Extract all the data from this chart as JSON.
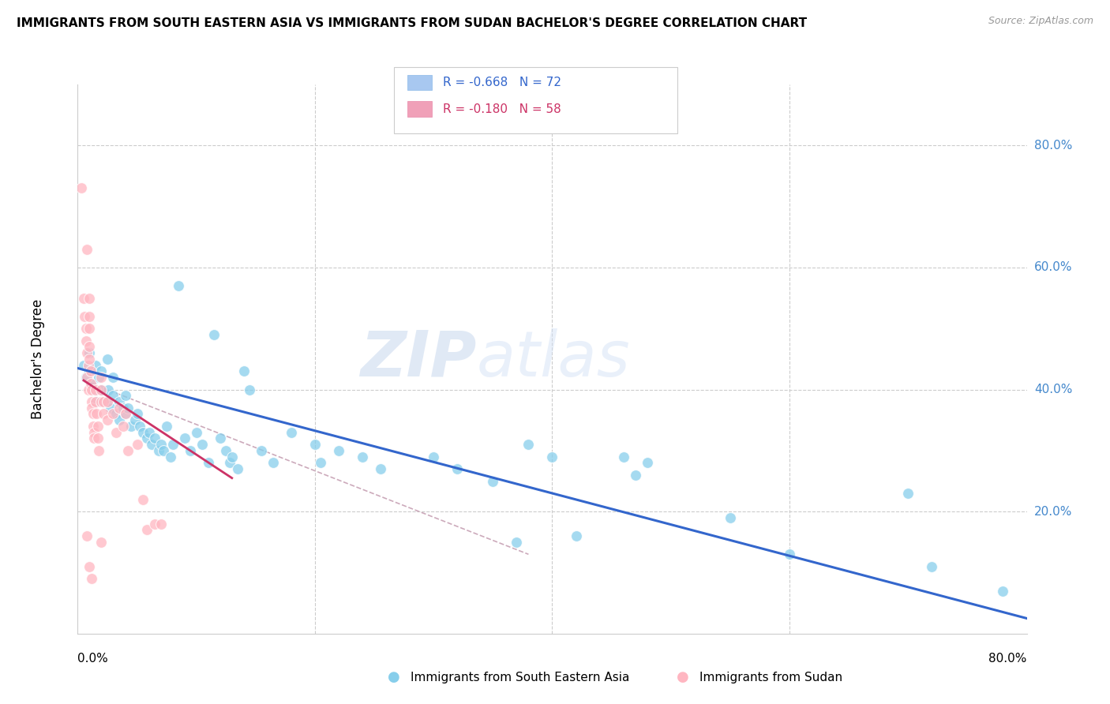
{
  "title": "IMMIGRANTS FROM SOUTH EASTERN ASIA VS IMMIGRANTS FROM SUDAN BACHELOR'S DEGREE CORRELATION CHART",
  "source": "Source: ZipAtlas.com",
  "ylabel": "Bachelor's Degree",
  "right_yticks": [
    "80.0%",
    "60.0%",
    "40.0%",
    "20.0%"
  ],
  "right_ytick_vals": [
    0.8,
    0.6,
    0.4,
    0.2
  ],
  "legend_blue_color": "#a8c8f0",
  "legend_pink_color": "#f0a0b8",
  "scatter_blue_color": "#87CEEB",
  "scatter_pink_color": "#FFB6C1",
  "trend_blue_color": "#3366CC",
  "trend_pink_color": "#CC3366",
  "trend_pink_dash_color": "#ccaabb",
  "watermark_zip": "ZIP",
  "watermark_atlas": "atlas",
  "background_color": "#ffffff",
  "xlim": [
    0.0,
    0.8
  ],
  "ylim": [
    0.0,
    0.9
  ],
  "blue_scatter": [
    [
      0.005,
      0.44
    ],
    [
      0.007,
      0.42
    ],
    [
      0.01,
      0.46
    ],
    [
      0.01,
      0.43
    ],
    [
      0.012,
      0.41
    ],
    [
      0.014,
      0.4
    ],
    [
      0.015,
      0.44
    ],
    [
      0.016,
      0.38
    ],
    [
      0.018,
      0.42
    ],
    [
      0.02,
      0.4
    ],
    [
      0.02,
      0.43
    ],
    [
      0.022,
      0.38
    ],
    [
      0.025,
      0.45
    ],
    [
      0.025,
      0.38
    ],
    [
      0.026,
      0.4
    ],
    [
      0.028,
      0.37
    ],
    [
      0.03,
      0.42
    ],
    [
      0.03,
      0.39
    ],
    [
      0.032,
      0.36
    ],
    [
      0.035,
      0.38
    ],
    [
      0.035,
      0.35
    ],
    [
      0.038,
      0.37
    ],
    [
      0.04,
      0.36
    ],
    [
      0.04,
      0.39
    ],
    [
      0.042,
      0.37
    ],
    [
      0.045,
      0.34
    ],
    [
      0.048,
      0.35
    ],
    [
      0.05,
      0.36
    ],
    [
      0.052,
      0.34
    ],
    [
      0.055,
      0.33
    ],
    [
      0.058,
      0.32
    ],
    [
      0.06,
      0.33
    ],
    [
      0.062,
      0.31
    ],
    [
      0.065,
      0.32
    ],
    [
      0.068,
      0.3
    ],
    [
      0.07,
      0.31
    ],
    [
      0.072,
      0.3
    ],
    [
      0.075,
      0.34
    ],
    [
      0.078,
      0.29
    ],
    [
      0.08,
      0.31
    ],
    [
      0.085,
      0.57
    ],
    [
      0.09,
      0.32
    ],
    [
      0.095,
      0.3
    ],
    [
      0.1,
      0.33
    ],
    [
      0.105,
      0.31
    ],
    [
      0.11,
      0.28
    ],
    [
      0.115,
      0.49
    ],
    [
      0.12,
      0.32
    ],
    [
      0.125,
      0.3
    ],
    [
      0.128,
      0.28
    ],
    [
      0.13,
      0.29
    ],
    [
      0.135,
      0.27
    ],
    [
      0.14,
      0.43
    ],
    [
      0.145,
      0.4
    ],
    [
      0.155,
      0.3
    ],
    [
      0.165,
      0.28
    ],
    [
      0.18,
      0.33
    ],
    [
      0.2,
      0.31
    ],
    [
      0.205,
      0.28
    ],
    [
      0.22,
      0.3
    ],
    [
      0.24,
      0.29
    ],
    [
      0.255,
      0.27
    ],
    [
      0.3,
      0.29
    ],
    [
      0.32,
      0.27
    ],
    [
      0.35,
      0.25
    ],
    [
      0.38,
      0.31
    ],
    [
      0.4,
      0.29
    ],
    [
      0.42,
      0.16
    ],
    [
      0.37,
      0.15
    ],
    [
      0.46,
      0.29
    ],
    [
      0.47,
      0.26
    ],
    [
      0.48,
      0.28
    ],
    [
      0.55,
      0.19
    ],
    [
      0.6,
      0.13
    ],
    [
      0.7,
      0.23
    ],
    [
      0.72,
      0.11
    ],
    [
      0.78,
      0.07
    ]
  ],
  "pink_scatter": [
    [
      0.003,
      0.73
    ],
    [
      0.008,
      0.63
    ],
    [
      0.005,
      0.55
    ],
    [
      0.006,
      0.52
    ],
    [
      0.007,
      0.5
    ],
    [
      0.007,
      0.48
    ],
    [
      0.008,
      0.46
    ],
    [
      0.009,
      0.44
    ],
    [
      0.008,
      0.42
    ],
    [
      0.009,
      0.4
    ],
    [
      0.01,
      0.55
    ],
    [
      0.01,
      0.52
    ],
    [
      0.01,
      0.5
    ],
    [
      0.01,
      0.47
    ],
    [
      0.01,
      0.45
    ],
    [
      0.011,
      0.43
    ],
    [
      0.011,
      0.41
    ],
    [
      0.012,
      0.4
    ],
    [
      0.012,
      0.38
    ],
    [
      0.012,
      0.37
    ],
    [
      0.013,
      0.36
    ],
    [
      0.013,
      0.34
    ],
    [
      0.014,
      0.33
    ],
    [
      0.014,
      0.32
    ],
    [
      0.015,
      0.4
    ],
    [
      0.015,
      0.38
    ],
    [
      0.016,
      0.36
    ],
    [
      0.017,
      0.34
    ],
    [
      0.017,
      0.32
    ],
    [
      0.018,
      0.3
    ],
    [
      0.02,
      0.42
    ],
    [
      0.02,
      0.4
    ],
    [
      0.02,
      0.38
    ],
    [
      0.022,
      0.38
    ],
    [
      0.022,
      0.36
    ],
    [
      0.025,
      0.38
    ],
    [
      0.025,
      0.35
    ],
    [
      0.03,
      0.36
    ],
    [
      0.032,
      0.33
    ],
    [
      0.035,
      0.37
    ],
    [
      0.038,
      0.34
    ],
    [
      0.04,
      0.36
    ],
    [
      0.042,
      0.3
    ],
    [
      0.05,
      0.31
    ],
    [
      0.055,
      0.22
    ],
    [
      0.058,
      0.17
    ],
    [
      0.065,
      0.18
    ],
    [
      0.07,
      0.18
    ],
    [
      0.01,
      0.11
    ],
    [
      0.012,
      0.09
    ],
    [
      0.02,
      0.15
    ],
    [
      0.008,
      0.16
    ]
  ],
  "blue_trend_x": [
    0.0,
    0.8
  ],
  "blue_trend_y": [
    0.435,
    0.025
  ],
  "pink_trend_x": [
    0.005,
    0.13
  ],
  "pink_trend_y": [
    0.415,
    0.255
  ],
  "pink_dash_trend_x": [
    0.005,
    0.38
  ],
  "pink_dash_trend_y": [
    0.415,
    0.13
  ]
}
